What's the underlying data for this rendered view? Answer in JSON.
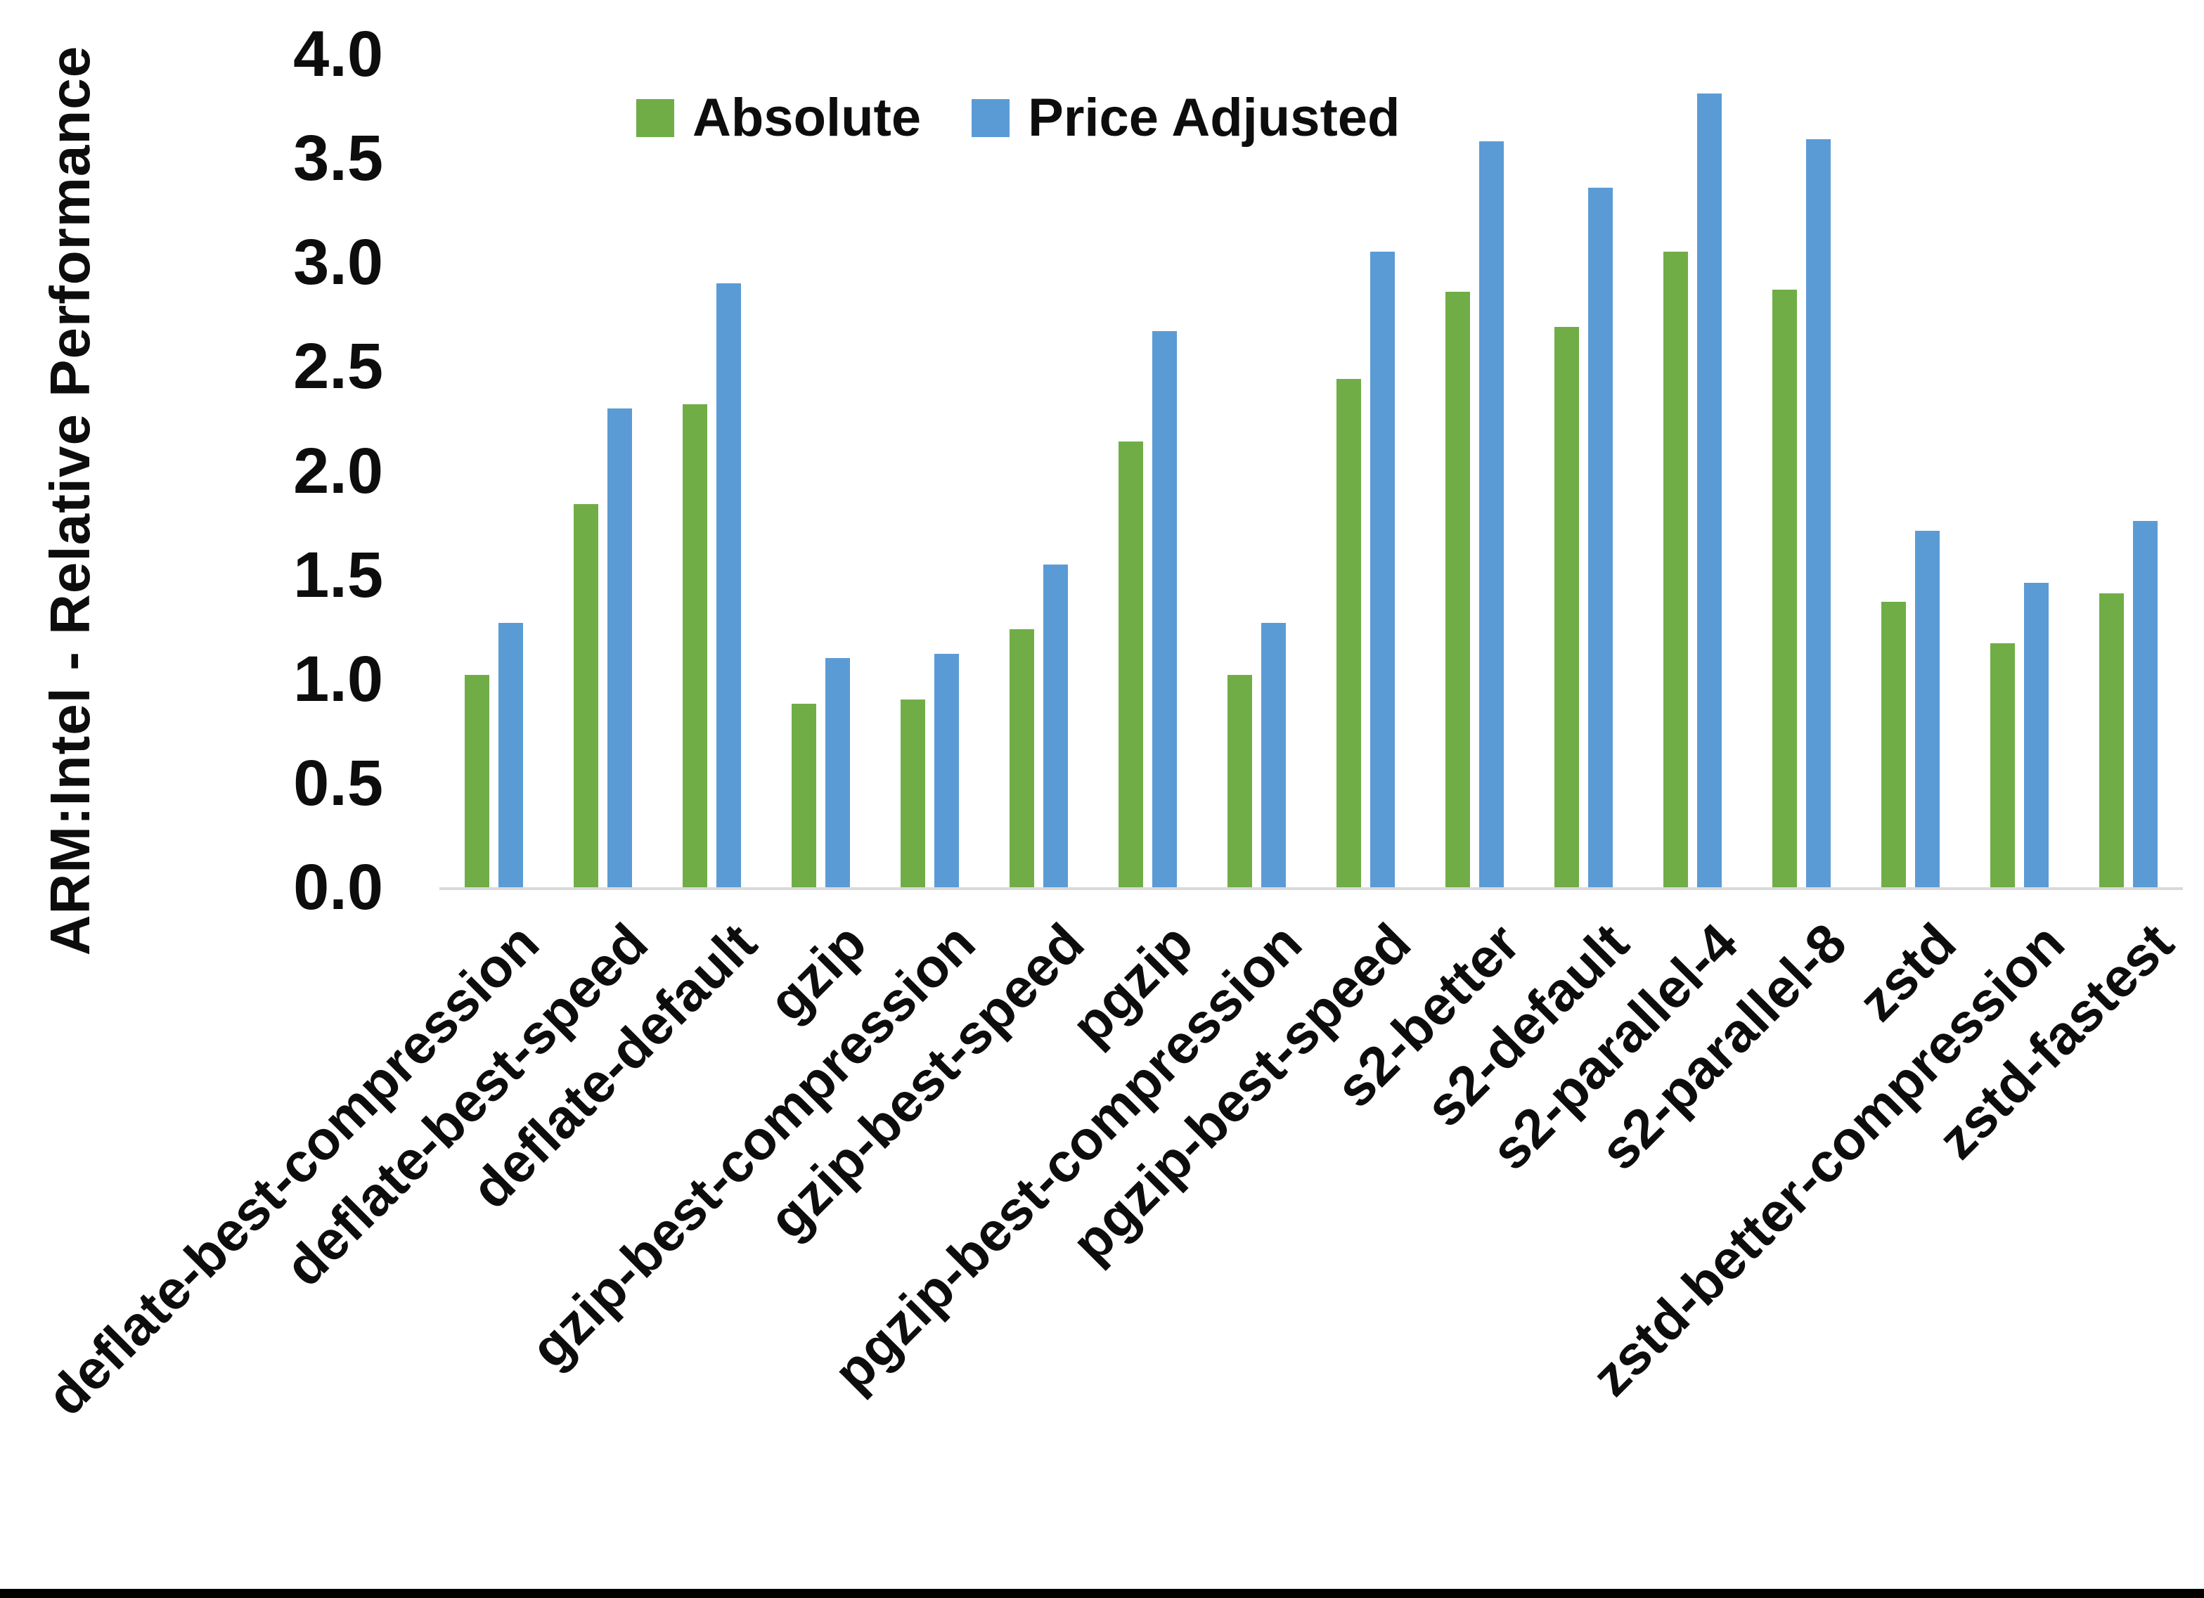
{
  "chart_data": {
    "type": "bar",
    "ylabel": "ARM:Intel - Relative Performance",
    "ylim": [
      0.0,
      4.0
    ],
    "ytick_step": 0.5,
    "ytick_labels": [
      "4.0",
      "3.5",
      "3.0",
      "2.5",
      "2.0",
      "1.5",
      "1.0",
      "0.5",
      "0.0"
    ],
    "grid": false,
    "legend_position": "top-center",
    "categories": [
      "deflate-best-compression",
      "deflate-best-speed",
      "deflate-default",
      "gzip",
      "gzip-best-compression",
      "gzip-best-speed",
      "pgzip",
      "pgzip-best-compression",
      "pgzip-best-speed",
      "s2-better",
      "s2-default",
      "s2-parallel-4",
      "s2-parallel-8",
      "zstd",
      "zstd-better-compression",
      "zstd-fastest"
    ],
    "series": [
      {
        "name": "Absolute",
        "color": "#70AD47",
        "values": [
          1.02,
          1.84,
          2.32,
          0.88,
          0.9,
          1.24,
          2.14,
          1.02,
          2.44,
          2.86,
          2.69,
          3.05,
          2.87,
          1.37,
          1.17,
          1.41
        ]
      },
      {
        "name": "Price Adjusted",
        "color": "#5B9BD5",
        "values": [
          1.27,
          2.3,
          2.9,
          1.1,
          1.12,
          1.55,
          2.67,
          1.27,
          3.05,
          3.58,
          3.36,
          3.81,
          3.59,
          1.71,
          1.46,
          1.76
        ]
      }
    ]
  },
  "colors": {
    "background": "#FFFFFF",
    "axis_line": "#D9D9D9",
    "text": "#0D0D0D",
    "bottom_bar": "#000000"
  }
}
